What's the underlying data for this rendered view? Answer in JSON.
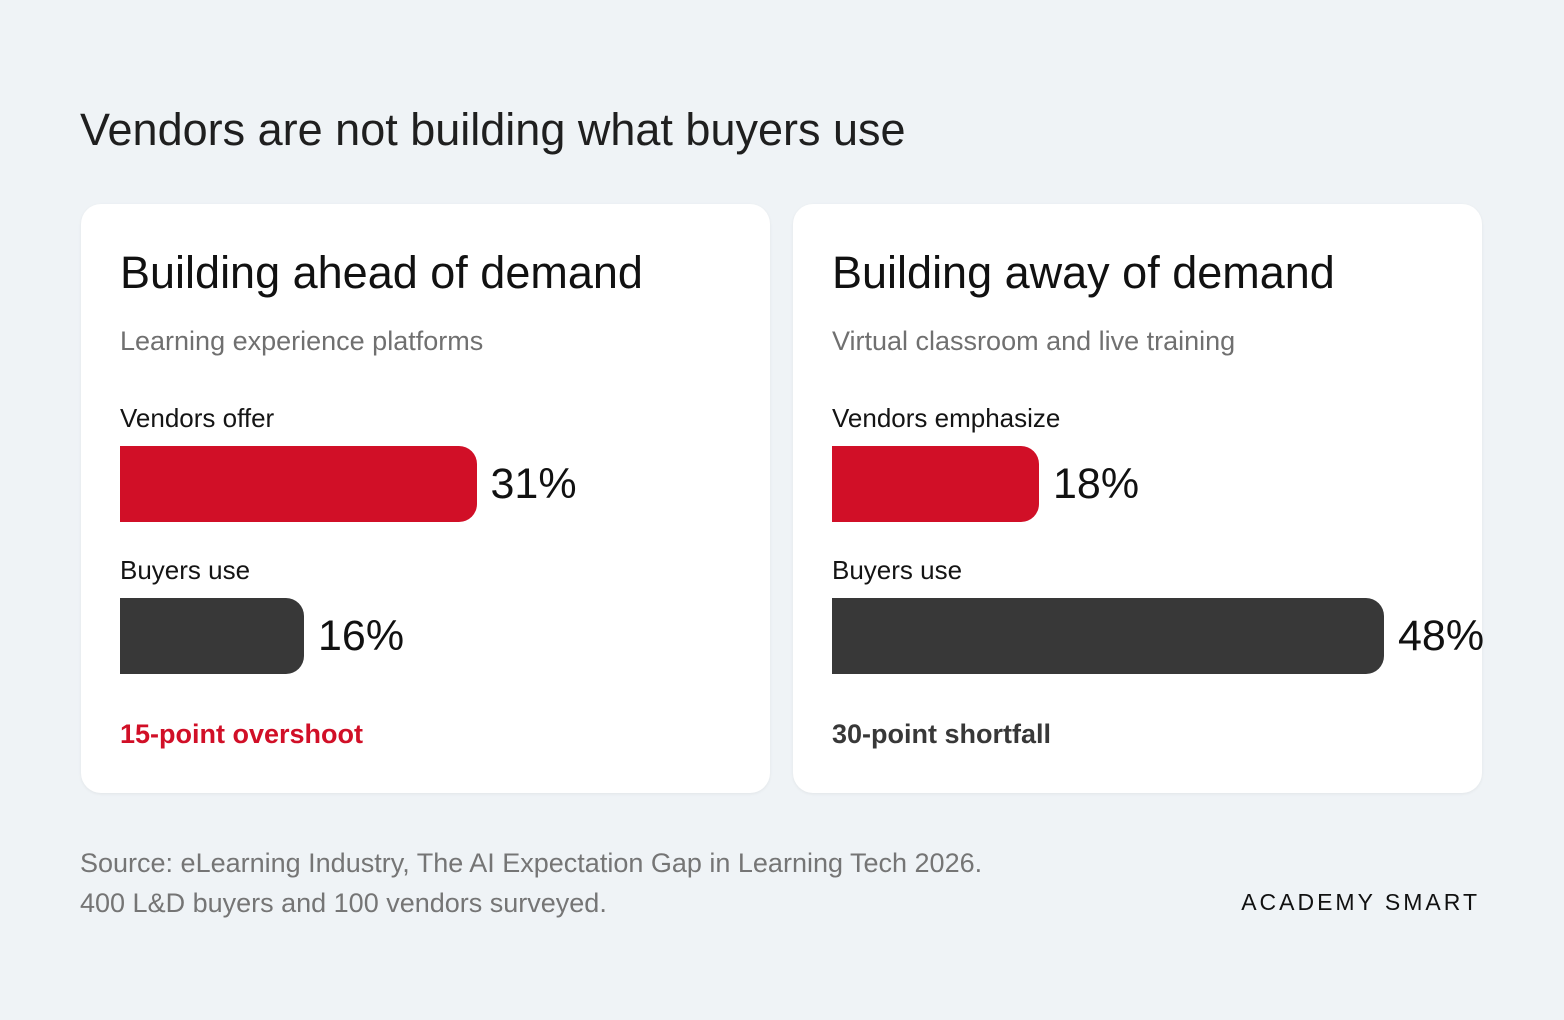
{
  "title": "Vendors are not building what buyers use",
  "colors": {
    "vendor_bar": "#d10f27",
    "buyer_bar": "#383838",
    "overshoot_note": "#d10f27",
    "shortfall_note": "#383838"
  },
  "chart_data": [
    {
      "type": "bar",
      "orientation": "horizontal",
      "title": "Building ahead of demand",
      "subtitle": "Learning experience platforms",
      "unit": "%",
      "xlim": [
        0,
        60
      ],
      "bars": [
        {
          "label": "Vendors offer",
          "value": 31,
          "display": "31%",
          "color": "#d10f27"
        },
        {
          "label": "Buyers use",
          "value": 16,
          "display": "16%",
          "color": "#383838"
        }
      ],
      "annotation": "15-point overshoot"
    },
    {
      "type": "bar",
      "orientation": "horizontal",
      "title": "Building away of demand",
      "subtitle": "Virtual classroom and live training",
      "unit": "%",
      "xlim": [
        0,
        60
      ],
      "bars": [
        {
          "label": "Vendors emphasize",
          "value": 18,
          "display": "18%",
          "color": "#d10f27"
        },
        {
          "label": "Buyers use",
          "value": 48,
          "display": "48%",
          "color": "#383838"
        }
      ],
      "annotation": "30-point shortfall"
    }
  ],
  "source": {
    "line1": "Source: eLearning Industry, The AI Expectation Gap in Learning Tech 2026.",
    "line2": "400 L&D buyers and 100 vendors surveyed."
  },
  "brand": "ACADEMY SMART"
}
